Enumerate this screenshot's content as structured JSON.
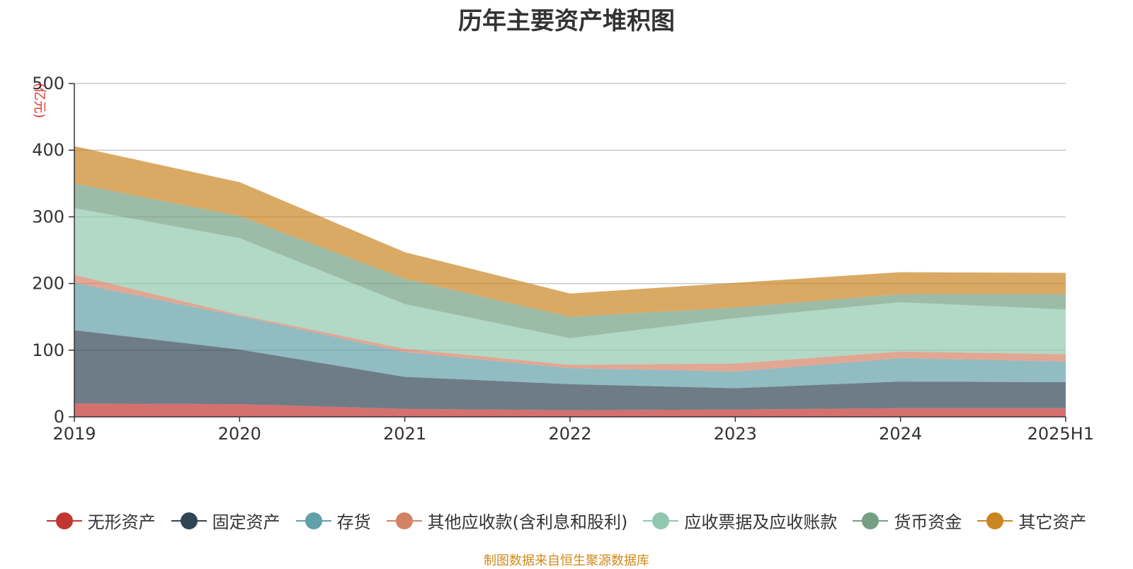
{
  "chart_data": {
    "type": "area",
    "stacked": true,
    "title": "历年主要资产堆积图",
    "ylabel": "(亿元)",
    "xlabel": "",
    "ylim": [
      0,
      500
    ],
    "yticks": [
      0,
      100,
      200,
      300,
      400,
      500
    ],
    "categories": [
      "2019",
      "2020",
      "2021",
      "2022",
      "2023",
      "2024",
      "2025H1"
    ],
    "series": [
      {
        "name": "无形资产",
        "color": "#c23531",
        "values": [
          20,
          19,
          12,
          10,
          11,
          13,
          13
        ]
      },
      {
        "name": "固定资产",
        "color": "#2f4554",
        "values": [
          110,
          82,
          48,
          39,
          32,
          40,
          39
        ]
      },
      {
        "name": "存货",
        "color": "#61a0a8",
        "values": [
          71,
          50,
          37,
          24,
          25,
          35,
          31
        ]
      },
      {
        "name": "其他应收款(含利息和股利)",
        "color": "#d48265",
        "values": [
          12,
          2,
          5,
          5,
          12,
          10,
          11
        ]
      },
      {
        "name": "应收票据及应收账款",
        "color": "#91c7ae",
        "values": [
          100,
          115,
          67,
          40,
          68,
          74,
          67
        ]
      },
      {
        "name": "货币资金",
        "color": "#749f83",
        "values": [
          37,
          33,
          38,
          32,
          16,
          12,
          23
        ]
      },
      {
        "name": "其它资产",
        "color": "#ca8622",
        "values": [
          56,
          51,
          40,
          35,
          37,
          33,
          32
        ]
      }
    ],
    "legend_position": "bottom",
    "grid": true
  },
  "source_note": "制图数据来自恒生聚源数据库"
}
